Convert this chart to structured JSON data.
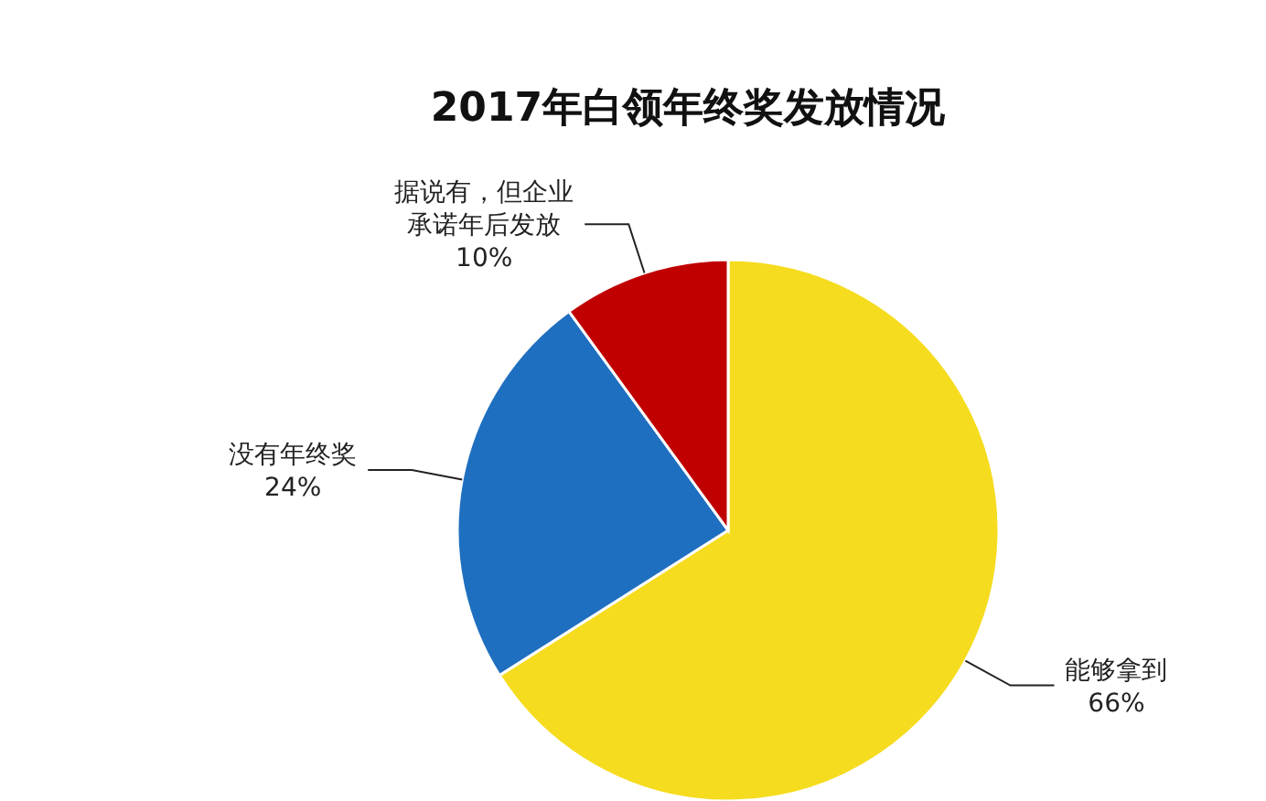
{
  "chart_data": {
    "type": "pie",
    "title": "2017年白领年终奖发放情况",
    "categories": [
      "能够拿到",
      "没有年终奖",
      "据说有，但企业承诺年后发放"
    ],
    "values": [
      66,
      24,
      10
    ],
    "value_labels": [
      "66%",
      "24%",
      "10%"
    ],
    "colors": [
      "#f5dc1f",
      "#1f6fc0",
      "#c00000"
    ]
  }
}
